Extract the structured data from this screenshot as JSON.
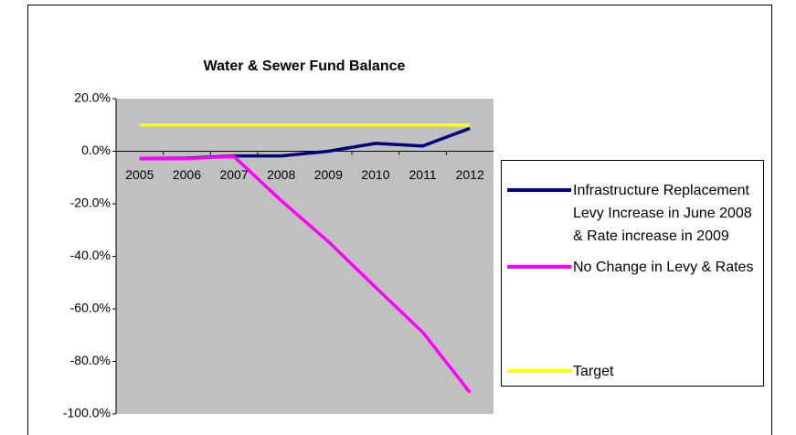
{
  "chart_data": {
    "type": "line",
    "title": "Water & Sewer Fund Balance",
    "categories": [
      "2005",
      "2006",
      "2007",
      "2008",
      "2009",
      "2010",
      "2011",
      "2012"
    ],
    "series": [
      {
        "name": "Infrastructure Replacement Levy Increase in June 2008 & Rate increase in 2009",
        "color": "#000080",
        "values": [
          -2.8,
          -2.6,
          -1.8,
          -1.8,
          0,
          3,
          2,
          8.7
        ]
      },
      {
        "name": "No Change in Levy & Rates",
        "color": "#ff00ff",
        "values": [
          -2.8,
          -2.8,
          -2,
          -18.8,
          -34.4,
          -51.8,
          -68.9,
          -91.8
        ]
      },
      {
        "name": "Target",
        "color": "#ffff00",
        "values": [
          10,
          10,
          10,
          10,
          10,
          10,
          10,
          10
        ]
      }
    ],
    "ylim": [
      -100,
      20
    ],
    "yticks": [
      {
        "value": 20,
        "label": "20.0%"
      },
      {
        "value": 0,
        "label": "0.0%"
      },
      {
        "value": -20,
        "label": "-20.0%"
      },
      {
        "value": -40,
        "label": "-40.0%"
      },
      {
        "value": -60,
        "label": "-60.0%"
      },
      {
        "value": -80,
        "label": "-80.0%"
      },
      {
        "value": -100,
        "label": "-100.0%"
      }
    ],
    "grid": false,
    "plot_background": "#c0c0c0",
    "legend": "right"
  }
}
